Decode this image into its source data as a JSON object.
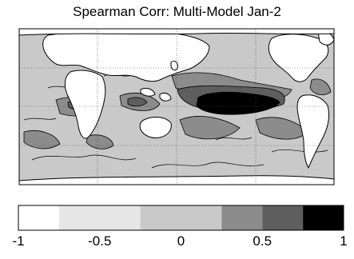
{
  "title": "Spearman Corr: Multi-Model Jan-2",
  "map": {
    "type": "filled contour map",
    "projection": "global longitude-latitude",
    "land_color": "#ffffff",
    "strong_positive_region": "central equatorial Pacific"
  },
  "colorbar": {
    "range": [
      -1,
      1
    ],
    "bins": [
      {
        "from": -1,
        "to": -0.75,
        "color": "#ffffff"
      },
      {
        "from": -0.75,
        "to": -0.25,
        "color": "#e6e6e6"
      },
      {
        "from": -0.25,
        "to": 0.25,
        "color": "#c9c9c9"
      },
      {
        "from": 0.25,
        "to": 0.5,
        "color": "#8c8c8c"
      },
      {
        "from": 0.5,
        "to": 0.75,
        "color": "#5e5e5e"
      },
      {
        "from": 0.75,
        "to": 1,
        "color": "#000000"
      }
    ],
    "ticks": [
      {
        "value": -1,
        "label": "-1"
      },
      {
        "value": -0.5,
        "label": "-0.5"
      },
      {
        "value": 0,
        "label": "0"
      },
      {
        "value": 0.5,
        "label": "0.5"
      },
      {
        "value": 1,
        "label": "1"
      }
    ]
  }
}
